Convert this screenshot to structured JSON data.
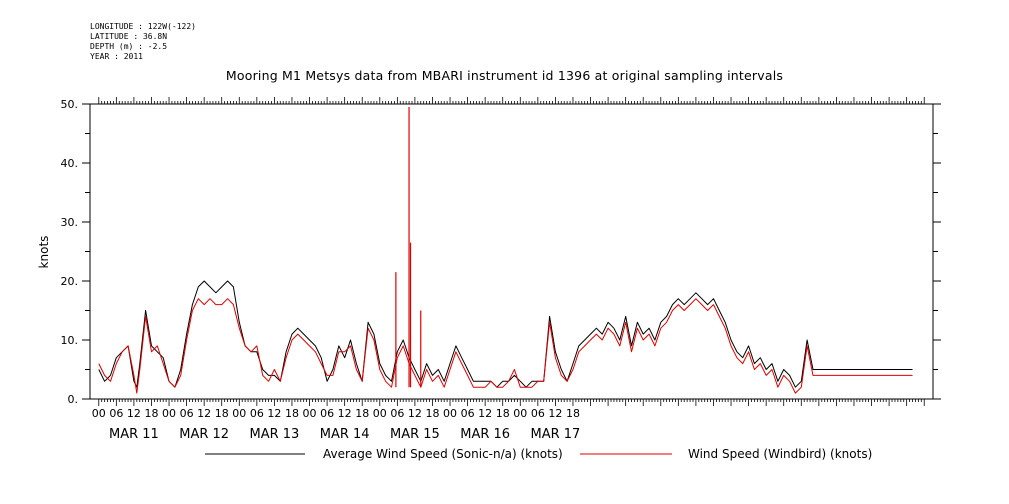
{
  "meta": {
    "longitude": "LONGITUDE : 122W(-122)",
    "latitude": "LATITUDE : 36.8N",
    "depth": "DEPTH (m) : -2.5",
    "year": "YEAR : 2011"
  },
  "chart_data": {
    "type": "line",
    "title": "Mooring M1 Metsys data from MBARI instrument id 1396 at original sampling intervals",
    "ylabel": "knots",
    "xlabel": "",
    "ylim": [
      0,
      50
    ],
    "yticks": [
      "0.",
      "10.",
      "20.",
      "30.",
      "40.",
      "50."
    ],
    "xlim_hours": [
      -3,
      285
    ],
    "hour_ticks": [
      "00",
      "06",
      "12",
      "18",
      "00",
      "06",
      "12",
      "18",
      "00",
      "06",
      "12",
      "18",
      "00",
      "06",
      "12",
      "18",
      "00",
      "06",
      "12",
      "18",
      "00",
      "06",
      "12",
      "18",
      "00",
      "06",
      "12",
      "18"
    ],
    "day_labels": [
      "MAR 11",
      "MAR 12",
      "MAR 13",
      "MAR 14",
      "MAR 15",
      "MAR 16",
      "MAR 17"
    ],
    "grid": false,
    "legend_position": "bottom",
    "series": [
      {
        "name": "Average Wind Speed (Sonic-n/a) (knots)",
        "color": "#000000",
        "hours": [
          0,
          2,
          4,
          6,
          8,
          10,
          12,
          13,
          14,
          16,
          18,
          20,
          22,
          24,
          26,
          28,
          30,
          32,
          34,
          36,
          38,
          40,
          42,
          44,
          46,
          48,
          50,
          52,
          54,
          56,
          58,
          60,
          62,
          64,
          66,
          68,
          70,
          72,
          74,
          76,
          78,
          80,
          82,
          84,
          86,
          88,
          90,
          92,
          94,
          96,
          98,
          100,
          102,
          104,
          106,
          108,
          110,
          112,
          114,
          116,
          118,
          120,
          122,
          124,
          126,
          128,
          130,
          132,
          134,
          136,
          138,
          140,
          142,
          144,
          146,
          148,
          150,
          152,
          154,
          156,
          158,
          160,
          162,
          164,
          166,
          168,
          170,
          172,
          174,
          176,
          178,
          180,
          182,
          184,
          186,
          188,
          190,
          192,
          194,
          196,
          198,
          200,
          202,
          204,
          206,
          208,
          210,
          212,
          214,
          216,
          218,
          220,
          222,
          224,
          226,
          228,
          230,
          232,
          234,
          236,
          238,
          240,
          242,
          244,
          246,
          248,
          250,
          252,
          254,
          256,
          258,
          260,
          262,
          264,
          266,
          268,
          270,
          272,
          274,
          276,
          278
        ],
        "values": [
          5,
          3,
          4,
          7,
          8,
          9,
          3,
          2,
          6,
          15,
          9,
          8,
          7,
          3,
          2,
          5,
          11,
          16,
          19,
          20,
          19,
          18,
          19,
          20,
          19,
          13,
          9,
          8,
          8,
          5,
          4,
          4,
          3,
          8,
          11,
          12,
          11,
          10,
          9,
          7,
          3,
          5,
          9,
          7,
          10,
          6,
          3,
          13,
          11,
          6,
          4,
          3,
          8,
          10,
          7,
          5,
          3,
          6,
          4,
          5,
          3,
          6,
          9,
          7,
          5,
          3,
          3,
          3,
          3,
          2,
          3,
          3,
          4,
          3,
          2,
          3,
          3,
          3,
          14,
          8,
          5,
          3,
          6,
          9,
          10,
          11,
          12,
          11,
          13,
          12,
          10,
          14,
          9,
          13,
          11,
          12,
          10,
          13,
          14,
          16,
          17,
          16,
          17,
          18,
          17,
          16,
          17,
          15,
          13,
          10,
          8,
          7,
          9,
          6,
          7,
          5,
          6,
          3,
          5,
          4,
          2,
          3,
          10,
          5,
          5,
          5,
          5,
          5,
          5,
          5,
          5,
          5,
          5,
          5,
          5,
          5,
          5,
          5,
          5,
          5,
          5
        ]
      },
      {
        "name": "Wind Speed (Windbird) (knots)",
        "color": "#e00000",
        "hours": [
          0,
          2,
          4,
          6,
          8,
          10,
          12,
          13,
          14,
          16,
          18,
          20,
          22,
          24,
          26,
          28,
          30,
          32,
          34,
          36,
          38,
          40,
          42,
          44,
          46,
          48,
          50,
          52,
          54,
          56,
          58,
          60,
          62,
          64,
          66,
          68,
          70,
          72,
          74,
          76,
          78,
          80,
          82,
          84,
          86,
          88,
          90,
          92,
          94,
          96,
          98,
          100,
          102,
          104,
          106,
          108,
          110,
          112,
          114,
          116,
          118,
          120,
          122,
          124,
          126,
          128,
          130,
          132,
          134,
          136,
          138,
          140,
          142,
          144,
          146,
          148,
          150,
          152,
          154,
          156,
          158,
          160,
          162,
          164,
          166,
          168,
          170,
          172,
          174,
          176,
          178,
          180,
          182,
          184,
          186,
          188,
          190,
          192,
          194,
          196,
          198,
          200,
          202,
          204,
          206,
          208,
          210,
          212,
          214,
          216,
          218,
          220,
          222,
          224,
          226,
          228,
          230,
          232,
          234,
          236,
          238,
          240,
          242,
          244,
          246,
          248,
          250,
          252,
          254,
          256,
          258,
          260,
          262,
          264,
          266,
          268,
          270,
          272,
          274,
          276,
          278
        ],
        "values": [
          6,
          4,
          3,
          6,
          8,
          9,
          4,
          1,
          5,
          14,
          8,
          9,
          6,
          3,
          2,
          4,
          10,
          15,
          17,
          16,
          17,
          16,
          16,
          17,
          16,
          12,
          9,
          8,
          9,
          4,
          3,
          5,
          3,
          7,
          10,
          11,
          10,
          9,
          8,
          6,
          4,
          4,
          8,
          8,
          9,
          5,
          3,
          12,
          10,
          5,
          3,
          2,
          7,
          9,
          6,
          4,
          2,
          5,
          3,
          4,
          2,
          5,
          8,
          6,
          4,
          2,
          2,
          2,
          3,
          2,
          2,
          3,
          5,
          2,
          2,
          2,
          3,
          3,
          13,
          7,
          4,
          3,
          5,
          8,
          9,
          10,
          11,
          10,
          12,
          11,
          9,
          13,
          8,
          12,
          10,
          11,
          9,
          12,
          13,
          15,
          16,
          15,
          16,
          17,
          16,
          15,
          16,
          14,
          12,
          9,
          7,
          6,
          8,
          5,
          6,
          4,
          5,
          2,
          4,
          3,
          1,
          2,
          9,
          4,
          4,
          4,
          4,
          4,
          4,
          4,
          4,
          4,
          4,
          4,
          4,
          4,
          4,
          4,
          4,
          4,
          4
        ],
        "spikes": [
          {
            "hour": 101.5,
            "value": 21.5
          },
          {
            "hour": 106,
            "value": 49.5
          },
          {
            "hour": 106.5,
            "value": 26.5
          },
          {
            "hour": 110,
            "value": 15
          }
        ]
      }
    ]
  }
}
